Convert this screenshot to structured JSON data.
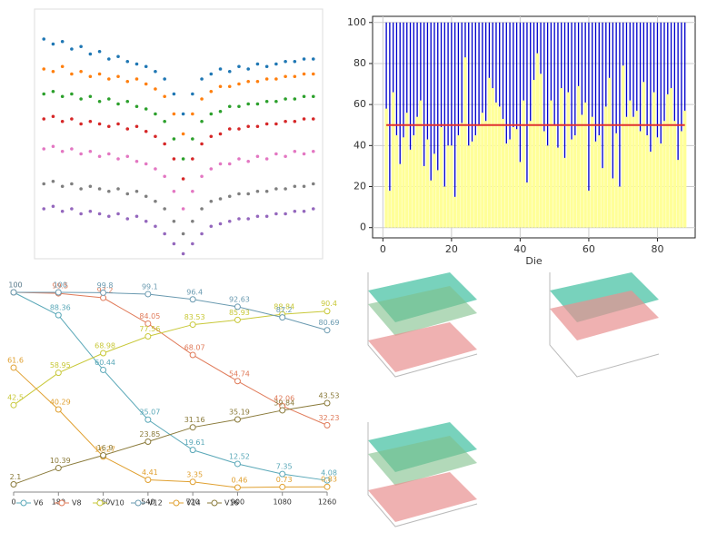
{
  "chart_data": [
    {
      "type": "scatter",
      "x": [
        0,
        1,
        2,
        3,
        4,
        5,
        6,
        7,
        8,
        9,
        10,
        11,
        12,
        13,
        14,
        15,
        16,
        17,
        18,
        19,
        20,
        21,
        22,
        23,
        24,
        25,
        26,
        27,
        28,
        29
      ],
      "xlim": [
        -1,
        30
      ],
      "ylim": [
        0,
        100
      ],
      "series": [
        {
          "color": "#1f77b4",
          "values": [
            88,
            86,
            87,
            84,
            85,
            82,
            83,
            80,
            81,
            79,
            78,
            77,
            75,
            72,
            66,
            58,
            66,
            72,
            74,
            76,
            75,
            77,
            76,
            78,
            77,
            78,
            79,
            79,
            80,
            80
          ]
        },
        {
          "color": "#ff7f0e",
          "values": [
            76,
            75,
            77,
            74,
            75,
            73,
            74,
            72,
            73,
            71,
            72,
            70,
            68,
            65,
            58,
            50,
            58,
            64,
            67,
            69,
            69,
            70,
            71,
            71,
            72,
            72,
            73,
            73,
            74,
            74
          ]
        },
        {
          "color": "#2ca02c",
          "values": [
            66,
            67,
            65,
            66,
            64,
            65,
            63,
            64,
            62,
            63,
            61,
            60,
            58,
            55,
            48,
            40,
            48,
            55,
            58,
            59,
            61,
            61,
            62,
            62,
            63,
            63,
            64,
            64,
            65,
            65
          ]
        },
        {
          "color": "#d62728",
          "values": [
            56,
            57,
            55,
            56,
            54,
            55,
            54,
            53,
            54,
            52,
            53,
            51,
            49,
            46,
            40,
            32,
            40,
            46,
            49,
            50,
            52,
            52,
            53,
            53,
            54,
            54,
            55,
            55,
            56,
            56
          ]
        },
        {
          "color": "#e377c2",
          "values": [
            44,
            45,
            43,
            44,
            42,
            43,
            41,
            42,
            40,
            41,
            39,
            38,
            36,
            33,
            27,
            20,
            27,
            33,
            36,
            38,
            38,
            40,
            39,
            41,
            40,
            42,
            41,
            43,
            42,
            43
          ]
        },
        {
          "color": "#7f7f7f",
          "values": [
            30,
            31,
            29,
            30,
            28,
            29,
            28,
            27,
            28,
            26,
            27,
            25,
            23,
            20,
            15,
            10,
            15,
            20,
            23,
            24,
            25,
            26,
            26,
            27,
            27,
            28,
            28,
            29,
            29,
            30
          ]
        },
        {
          "color": "#9467bd",
          "values": [
            20,
            21,
            19,
            20,
            18,
            19,
            18,
            17,
            18,
            16,
            17,
            15,
            13,
            10,
            6,
            2,
            6,
            10,
            13,
            14,
            15,
            16,
            16,
            17,
            17,
            18,
            18,
            19,
            19,
            20
          ]
        }
      ]
    },
    {
      "type": "bar",
      "xlabel": "Die",
      "x": [
        1,
        2,
        3,
        4,
        5,
        6,
        7,
        8,
        9,
        10,
        11,
        12,
        13,
        14,
        15,
        16,
        17,
        18,
        19,
        20,
        21,
        22,
        23,
        24,
        25,
        26,
        27,
        28,
        29,
        30,
        31,
        32,
        33,
        34,
        35,
        36,
        37,
        38,
        39,
        40,
        41,
        42,
        43,
        44,
        45,
        46,
        47,
        48,
        49,
        50,
        51,
        52,
        53,
        54,
        55,
        56,
        57,
        58,
        59,
        60,
        61,
        62,
        63,
        64,
        65,
        66,
        67,
        68,
        69,
        70,
        71,
        72,
        73,
        74,
        75,
        76,
        77,
        78,
        79,
        80,
        81,
        82,
        83,
        84,
        85,
        86,
        87,
        88
      ],
      "xlim": [
        -3,
        91
      ],
      "ylim": [
        -5,
        103
      ],
      "xticks": [
        0,
        20,
        40,
        60,
        80
      ],
      "yticks": [
        0,
        20,
        40,
        60,
        80,
        100
      ],
      "grid": true,
      "series": [
        {
          "color": "#0000cc",
          "width": 0.35,
          "values": [
            100,
            100,
            100,
            100,
            100,
            100,
            100,
            100,
            100,
            100,
            100,
            100,
            100,
            100,
            100,
            100,
            100,
            100,
            100,
            100,
            100,
            100,
            100,
            100,
            100,
            100,
            100,
            100,
            100,
            100,
            100,
            100,
            100,
            100,
            100,
            100,
            100,
            100,
            100,
            100,
            100,
            100,
            100,
            100,
            100,
            100,
            100,
            100,
            100,
            100,
            100,
            100,
            100,
            100,
            100,
            100,
            100,
            100,
            100,
            100,
            100,
            100,
            100,
            100,
            100,
            100,
            100,
            100,
            100,
            100,
            100,
            100,
            100,
            100,
            100,
            100,
            100,
            100,
            100,
            100,
            100,
            100,
            100,
            100,
            100,
            100,
            100,
            100
          ]
        },
        {
          "color": "#ffff99",
          "width": 0.9,
          "values": [
            58,
            18,
            66,
            45,
            31,
            44,
            56,
            38,
            45,
            54,
            62,
            30,
            43,
            23,
            36,
            28,
            49,
            20,
            40,
            40,
            15,
            45,
            51,
            83,
            40,
            42,
            45,
            50,
            56,
            52,
            73,
            68,
            61,
            59,
            53,
            41,
            43,
            49,
            48,
            32,
            62,
            22,
            52,
            72,
            85,
            75,
            47,
            40,
            62,
            50,
            39,
            68,
            34,
            66,
            43,
            45,
            69,
            55,
            61,
            18,
            54,
            42,
            45,
            29,
            59,
            73,
            24,
            46,
            20,
            79,
            54,
            62,
            54,
            57,
            47,
            71,
            45,
            37,
            66,
            44,
            41,
            52,
            65,
            68,
            52,
            33,
            47,
            57
          ]
        }
      ],
      "hline": {
        "value": 50,
        "color": "#e03030"
      }
    },
    {
      "type": "line",
      "x": [
        0,
        180,
        360,
        540,
        720,
        900,
        1080,
        1260
      ],
      "xlim": [
        0,
        1260
      ],
      "ylim": [
        0,
        100
      ],
      "xticks": [
        0,
        180,
        360,
        540,
        720,
        900,
        1080,
        1260
      ],
      "series": [
        {
          "name": "V6",
          "color": "#5aa8b8",
          "values": [
            100,
            88.36,
            60.44,
            35.07,
            19.61,
            12.52,
            7.35,
            4.08
          ]
        },
        {
          "name": "V8",
          "color": "#e07b5a",
          "values": [
            100,
            99.5,
            97.2,
            84.05,
            68.07,
            54.74,
            42.06,
            32.23
          ]
        },
        {
          "name": "V10",
          "color": "#c8c838",
          "values": [
            42.5,
            58.95,
            68.98,
            77.56,
            83.53,
            85.93,
            88.84,
            90.4
          ]
        },
        {
          "name": "V12",
          "color": "#6a9ab0",
          "values": [
            100,
            100,
            99.8,
            99.1,
            96.4,
            92.63,
            87.2,
            80.69
          ]
        },
        {
          "name": "V14",
          "color": "#e0a030",
          "values": [
            61.6,
            40.29,
            16.27,
            4.41,
            3.35,
            0.46,
            0.73,
            0.83
          ]
        },
        {
          "name": "V16",
          "color": "#8a7a3a",
          "values": [
            2.1,
            10.39,
            16.9,
            23.85,
            31.16,
            35.19,
            39.84,
            43.53
          ]
        }
      ]
    }
  ]
}
